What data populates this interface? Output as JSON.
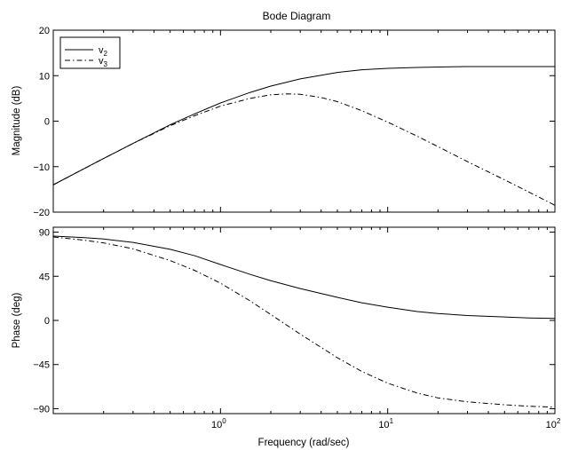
{
  "chart_data": [
    {
      "type": "line",
      "title": "Bode Diagram",
      "ylabel": "Magnitude (dB)",
      "xlabel": "",
      "xscale": "log",
      "xlim": [
        0.1,
        100
      ],
      "ylim": [
        -20,
        20
      ],
      "yticks": [
        -20,
        -10,
        0,
        10,
        20
      ],
      "ytick_labels": [
        "−20",
        "−10",
        "0",
        "10",
        "20"
      ],
      "grid": false,
      "legend": {
        "placement": "top-left",
        "entries": [
          {
            "base": "v",
            "sub": "2",
            "style": "solid"
          },
          {
            "base": "v",
            "sub": "3",
            "style": "dash-dot"
          }
        ]
      },
      "series": [
        {
          "name": "v2",
          "style": "solid",
          "x": [
            0.1,
            0.15,
            0.2,
            0.3,
            0.5,
            0.7,
            1,
            1.5,
            2,
            3,
            5,
            7,
            10,
            15,
            20,
            30,
            50,
            70,
            100
          ],
          "values": [
            -14.0,
            -10.6,
            -8.2,
            -4.9,
            -0.8,
            1.6,
            4.0,
            6.3,
            7.7,
            9.3,
            10.7,
            11.3,
            11.6,
            11.8,
            11.9,
            12.0,
            12.0,
            12.0,
            12.0
          ]
        },
        {
          "name": "v3",
          "style": "dash-dot",
          "x": [
            0.1,
            0.15,
            0.2,
            0.3,
            0.5,
            0.7,
            1,
            1.5,
            2,
            2.5,
            3,
            4,
            5,
            7,
            10,
            15,
            20,
            30,
            50,
            70,
            100
          ],
          "values": [
            -14.0,
            -10.6,
            -8.2,
            -4.9,
            -1.0,
            1.2,
            3.3,
            5.0,
            5.8,
            6.0,
            5.9,
            5.2,
            4.3,
            2.3,
            -0.2,
            -3.3,
            -5.6,
            -8.9,
            -12.9,
            -15.6,
            -18.5
          ]
        }
      ]
    },
    {
      "type": "line",
      "title": "",
      "ylabel": "Phase (deg)",
      "xlabel": "Frequency (rad/sec)",
      "xscale": "log",
      "xlim": [
        0.1,
        100
      ],
      "xticks": [
        {
          "base": "10",
          "exp": "0",
          "value": 1
        },
        {
          "base": "10",
          "exp": "1",
          "value": 10
        },
        {
          "base": "10",
          "exp": "2",
          "value": 100
        }
      ],
      "ylim": [
        -95,
        95
      ],
      "yticks": [
        -90,
        -45,
        0,
        45,
        90
      ],
      "ytick_labels": [
        "−90",
        "−45",
        "0",
        "45",
        "90"
      ],
      "grid": false,
      "series": [
        {
          "name": "v2",
          "style": "solid",
          "x": [
            0.1,
            0.15,
            0.2,
            0.3,
            0.5,
            0.7,
            1,
            1.5,
            2,
            3,
            5,
            7,
            10,
            15,
            20,
            30,
            50,
            70,
            100
          ],
          "values": [
            86.0,
            84.5,
            83.0,
            79.5,
            72.5,
            66.0,
            57.0,
            47.0,
            40.5,
            32.5,
            23.5,
            18.0,
            13.5,
            9.0,
            7.0,
            5.0,
            3.5,
            2.5,
            2.0
          ]
        },
        {
          "name": "v3",
          "style": "dash-dot",
          "x": [
            0.1,
            0.15,
            0.2,
            0.3,
            0.5,
            0.7,
            1,
            1.5,
            2,
            3,
            5,
            7,
            10,
            15,
            20,
            30,
            50,
            70,
            100
          ],
          "values": [
            85.0,
            82.0,
            79.0,
            73.0,
            61.0,
            51.0,
            38.0,
            20.0,
            6.0,
            -14.0,
            -38.0,
            -52.0,
            -64.0,
            -74.0,
            -79.0,
            -83.0,
            -86.0,
            -87.5,
            -88.5
          ]
        }
      ]
    }
  ]
}
